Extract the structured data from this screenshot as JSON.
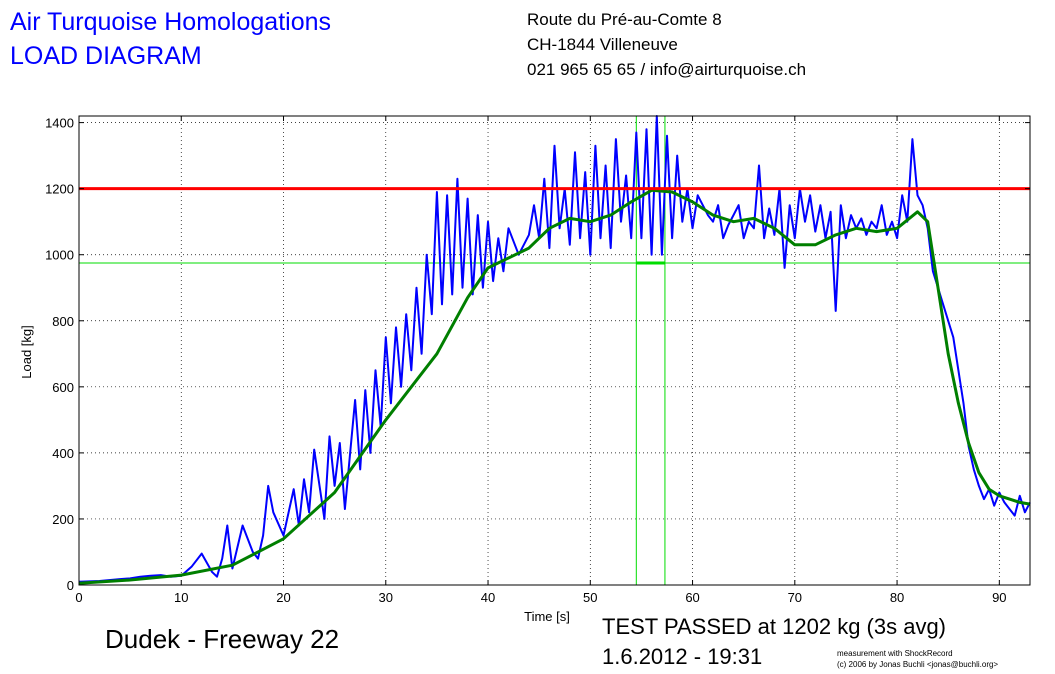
{
  "header": {
    "company": "Air Turquoise Homologations",
    "doc_title": "LOAD DIAGRAM",
    "address_line1": "Route du Pré-au-Comte 8",
    "address_line2": "CH-1844 Villeneuve",
    "address_line3": "021 965 65 65 / info@airturquoise.ch"
  },
  "footer": {
    "glider": "Dudek - Freeway 22",
    "result": "TEST PASSED at 1202 kg (3s avg)",
    "datetime": "1.6.2012 - 19:31",
    "credit1": "measurement with ShockRecord",
    "credit2": "(c) 2006 by Jonas Buchli <jonas@buchli.org>"
  },
  "colors": {
    "raw": "#0000ff",
    "avg": "#007f00",
    "limit": "#ff0000",
    "window": "#00dd00",
    "header_text": "#0000ff"
  },
  "chart_data": {
    "type": "line",
    "xlabel": "Time [s]",
    "ylabel": "Load [kg]",
    "xlim": [
      0,
      93
    ],
    "ylim": [
      0,
      1420
    ],
    "xticks": [
      0,
      10,
      20,
      30,
      40,
      50,
      60,
      70,
      80,
      90
    ],
    "yticks": [
      0,
      200,
      400,
      600,
      800,
      1000,
      1200,
      1400
    ],
    "grid": true,
    "limit_load": 1200,
    "avg_window": {
      "x_start": 54.5,
      "x_end": 57.3,
      "level": 975
    },
    "series": [
      {
        "style": "raw",
        "x": [
          0,
          2,
          4,
          5,
          6,
          7,
          8,
          9,
          10,
          11,
          12,
          13,
          13.5,
          14,
          14.5,
          15,
          16,
          17,
          17.5,
          18,
          18.5,
          19,
          20,
          21,
          21.5,
          22,
          22.5,
          23,
          24,
          24.5,
          25,
          25.5,
          26,
          27,
          27.5,
          28,
          28.5,
          29,
          29.5,
          30,
          30.5,
          31,
          31.5,
          32,
          32.5,
          33,
          33.5,
          34,
          34.5,
          35,
          35.5,
          36,
          36.5,
          37,
          37.5,
          38,
          38.5,
          39,
          39.5,
          40,
          40.5,
          41,
          41.5,
          42,
          43,
          44,
          44.5,
          45,
          45.5,
          46,
          46.5,
          47,
          47.5,
          48,
          48.5,
          49,
          49.5,
          50,
          50.5,
          51,
          51.5,
          52,
          52.5,
          53,
          53.5,
          54,
          54.5,
          55,
          55.5,
          56,
          56.5,
          57,
          57.5,
          58,
          58.5,
          59,
          59.5,
          60,
          60.5,
          61,
          61.5,
          62,
          62.5,
          63,
          63.5,
          64,
          64.5,
          65,
          65.5,
          66,
          66.5,
          67,
          67.5,
          68,
          68.5,
          69,
          69.5,
          70,
          70.5,
          71,
          71.5,
          72,
          72.5,
          73,
          73.5,
          74,
          74.5,
          75,
          75.5,
          76,
          76.5,
          77,
          77.5,
          78,
          78.5,
          79,
          79.5,
          80,
          80.5,
          81,
          81.5,
          82,
          82.5,
          83,
          83.5,
          84,
          84.5,
          85,
          85.5,
          86,
          86.5,
          87,
          87.5,
          88,
          88.5,
          89,
          89.5,
          90,
          90.5,
          91,
          91.5,
          92,
          92.5,
          93
        ],
        "y": [
          10,
          12,
          18,
          20,
          25,
          28,
          30,
          25,
          28,
          55,
          95,
          40,
          25,
          80,
          180,
          50,
          180,
          100,
          80,
          150,
          300,
          220,
          150,
          290,
          180,
          320,
          220,
          410,
          200,
          450,
          300,
          430,
          230,
          560,
          350,
          590,
          400,
          650,
          480,
          750,
          550,
          780,
          600,
          820,
          650,
          900,
          700,
          1000,
          820,
          1190,
          850,
          1180,
          880,
          1230,
          900,
          1170,
          880,
          1120,
          900,
          1100,
          920,
          1050,
          950,
          1080,
          1000,
          1060,
          1150,
          1050,
          1230,
          1020,
          1330,
          1080,
          1200,
          1030,
          1310,
          1050,
          1250,
          1000,
          1330,
          1050,
          1270,
          1020,
          1350,
          1100,
          1240,
          1050,
          1370,
          1050,
          1380,
          1000,
          1420,
          1000,
          1360,
          1050,
          1300,
          1100,
          1200,
          1080,
          1180,
          1150,
          1120,
          1100,
          1150,
          1050,
          1090,
          1120,
          1150,
          1050,
          1100,
          1080,
          1270,
          1050,
          1140,
          1060,
          1200,
          960,
          1150,
          1050,
          1200,
          1100,
          1180,
          1070,
          1150,
          1050,
          1130,
          830,
          1150,
          1050,
          1120,
          1080,
          1110,
          1060,
          1100,
          1080,
          1150,
          1060,
          1100,
          1050,
          1180,
          1100,
          1350,
          1180,
          1150,
          1080,
          950,
          900,
          850,
          800,
          750,
          650,
          550,
          420,
          350,
          300,
          260,
          290,
          240,
          280,
          250,
          230,
          210,
          270,
          220,
          250
        ],
        "name": ""
      },
      {
        "style": "avg",
        "x": [
          0,
          5,
          10,
          15,
          20,
          25,
          30,
          35,
          38,
          40,
          42,
          44,
          46,
          48,
          50,
          52,
          54,
          56,
          58,
          60,
          62,
          64,
          66,
          68,
          70,
          72,
          74,
          76,
          78,
          80,
          82,
          83,
          84,
          85,
          86,
          87,
          88,
          89,
          90,
          91,
          92,
          93
        ],
        "y": [
          5,
          15,
          30,
          60,
          140,
          280,
          500,
          700,
          870,
          960,
          990,
          1020,
          1080,
          1110,
          1100,
          1120,
          1160,
          1195,
          1190,
          1160,
          1120,
          1100,
          1110,
          1080,
          1030,
          1030,
          1060,
          1080,
          1070,
          1080,
          1130,
          1100,
          900,
          700,
          550,
          430,
          340,
          290,
          270,
          260,
          250,
          245
        ],
        "name": ""
      }
    ]
  }
}
